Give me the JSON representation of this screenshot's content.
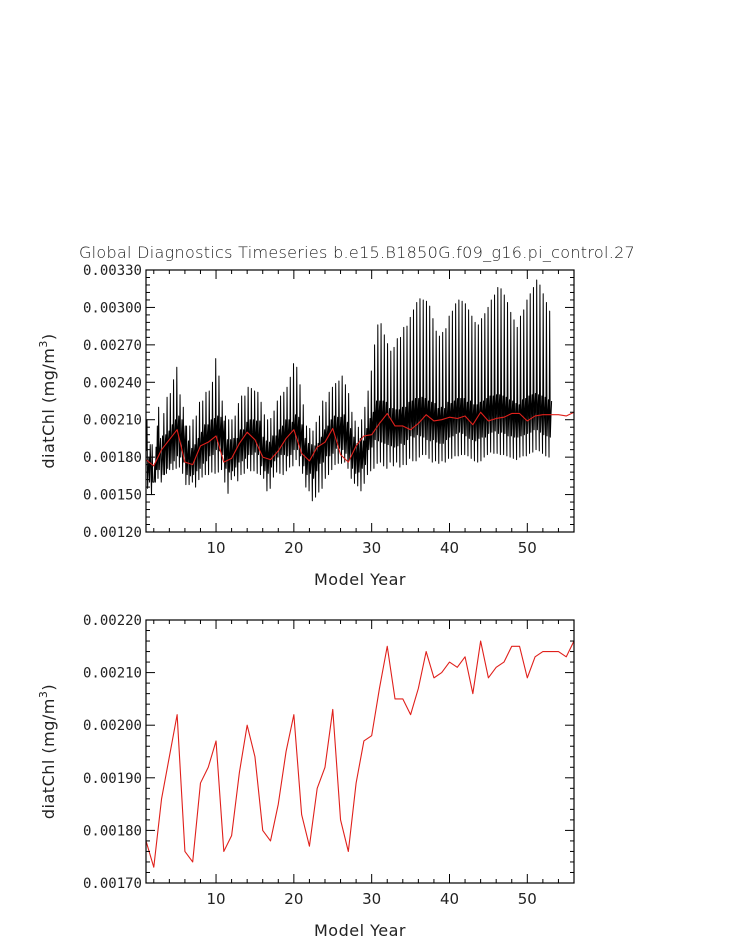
{
  "page_title": "Global Diagnostics Timeseries b.e15.B1850G.f09_g16.pi_control.27",
  "colors": {
    "monthly": "#000000",
    "annual": "#e0201b",
    "axes": "#000000"
  },
  "chart_data": [
    {
      "type": "line",
      "title": "Global Diagnostics Timeseries b.e15.B1850G.f09_g16.pi_control.27",
      "xlabel": "Model Year",
      "ylabel": "diatChl (mg/m³)",
      "ylabel_base": "diatChl (mg/m",
      "ylabel_sup": "3",
      "ylabel_close": ")",
      "xlim": [
        1,
        56
      ],
      "ylim": [
        0.0012,
        0.0033
      ],
      "xticks": [
        10,
        20,
        30,
        40,
        50
      ],
      "xtick_labels": [
        "10",
        "20",
        "30",
        "40",
        "50"
      ],
      "yticks": [
        0.0012,
        0.0015,
        0.0018,
        0.0021,
        0.0024,
        0.0027,
        0.003,
        0.0033
      ],
      "ytick_labels": [
        "0.00120",
        "0.00150",
        "0.00180",
        "0.00210",
        "0.00240",
        "0.00270",
        "0.00300",
        "0.00330"
      ],
      "series": [
        {
          "name": "monthly",
          "color": "#000000",
          "x_start": 1.0417,
          "x_step": 0.08333,
          "values": [
            0.00185,
            0.0021,
            0.00155,
            0.0017,
            0.0018,
            0.0016,
            0.0019,
            0.00172,
            0.0015,
            0.0019,
            0.0016,
            0.0016,
            0.0016,
            0.00175,
            0.0016,
            0.00188,
            0.0017,
            0.00205,
            0.00163,
            0.0022,
            0.0017,
            0.00185,
            0.00195,
            0.0016,
            0.00177,
            0.00197,
            0.00166,
            0.00215,
            0.00166,
            0.0019,
            0.00198,
            0.00167,
            0.00228,
            0.00171,
            0.00193,
            0.00201,
            0.0017,
            0.00231,
            0.00175,
            0.00195,
            0.00206,
            0.0017,
            0.00242,
            0.00177,
            0.00199,
            0.0021,
            0.00171,
            0.00252,
            0.00181,
            0.00202,
            0.00213,
            0.00172,
            0.0023,
            0.0018,
            0.00195,
            0.0021,
            0.00167,
            0.0022,
            0.00176,
            0.00192,
            0.00205,
            0.00158,
            0.00205,
            0.00166,
            0.00181,
            0.00193,
            0.00158,
            0.00205,
            0.00165,
            0.00178,
            0.00187,
            0.0016,
            0.0021,
            0.00166,
            0.00183,
            0.0019,
            0.00156,
            0.00213,
            0.00169,
            0.00185,
            0.00195,
            0.00162,
            0.00224,
            0.00171,
            0.00189,
            0.002,
            0.00164,
            0.00225,
            0.00175,
            0.00194,
            0.00206,
            0.00166,
            0.00232,
            0.00177,
            0.00196,
            0.00206,
            0.00166,
            0.00233,
            0.00181,
            0.00198,
            0.0021,
            0.00168,
            0.0024,
            0.00182,
            0.00198,
            0.00211,
            0.00167,
            0.00259,
            0.00186,
            0.00202,
            0.00213,
            0.00168,
            0.00245,
            0.00185,
            0.00199,
            0.00212,
            0.0017,
            0.00225,
            0.00182,
            0.00199,
            0.00209,
            0.0016,
            0.00213,
            0.00171,
            0.00185,
            0.00194,
            0.00151,
            0.0021,
            0.00168,
            0.00181,
            0.00194,
            0.00162,
            0.0021,
            0.00169,
            0.00184,
            0.00195,
            0.00165,
            0.00213,
            0.00172,
            0.00185,
            0.00195,
            0.00161,
            0.00223,
            0.00176,
            0.00192,
            0.00202,
            0.00166,
            0.00229,
            0.00177,
            0.00194,
            0.00202,
            0.00167,
            0.00229,
            0.00179,
            0.00197,
            0.00208,
            0.00171,
            0.00236,
            0.00182,
            0.00198,
            0.0021,
            0.00169,
            0.00235,
            0.00182,
            0.00197,
            0.0021,
            0.00169,
            0.00233,
            0.00184,
            0.00197,
            0.00209,
            0.00167,
            0.00232,
            0.00182,
            0.00195,
            0.00209,
            0.00166,
            0.00224,
            0.00173,
            0.00184,
            0.00196,
            0.00163,
            0.00214,
            0.00169,
            0.00181,
            0.00193,
            0.00153,
            0.0021,
            0.00167,
            0.00182,
            0.00192,
            0.00155,
            0.00211,
            0.00172,
            0.00186,
            0.00197,
            0.00164,
            0.00217,
            0.00177,
            0.00187,
            0.00197,
            0.00168,
            0.00225,
            0.0018,
            0.00192,
            0.00202,
            0.00167,
            0.00229,
            0.00182,
            0.00194,
            0.00205,
            0.00166,
            0.00232,
            0.00182,
            0.00197,
            0.0021,
            0.00169,
            0.00236,
            0.00181,
            0.00199,
            0.0021,
            0.00172,
            0.00244,
            0.00182,
            0.00197,
            0.00208,
            0.00173,
            0.00255,
            0.00186,
            0.00203,
            0.00214,
            0.00178,
            0.00252,
            0.00186,
            0.00201,
            0.00212,
            0.00173,
            0.00238,
            0.00181,
            0.00198,
            0.00206,
            0.00167,
            0.00222,
            0.00173,
            0.00187,
            0.00195,
            0.00156,
            0.00205,
            0.00166,
            0.00182,
            0.00191,
            0.00153,
            0.00203,
            0.00167,
            0.00178,
            0.0019,
            0.00145,
            0.00201,
            0.00163,
            0.00177,
            0.00189,
            0.00148,
            0.00208,
            0.00169,
            0.00182,
            0.00191,
            0.00152,
            0.00213,
            0.00175,
            0.00188,
            0.00196,
            0.00155,
            0.00225,
            0.00176,
            0.00193,
            0.00202,
            0.00163,
            0.00224,
            0.00181,
            0.00197,
            0.00205,
            0.00166,
            0.00232,
            0.00181,
            0.00199,
            0.0021,
            0.0017,
            0.00236,
            0.00183,
            0.00199,
            0.00213,
            0.00174,
            0.00239,
            0.00187,
            0.002,
            0.00212,
            0.00175,
            0.00241,
            0.00187,
            0.00202,
            0.00212,
            0.00175,
            0.00245,
            0.00186,
            0.00202,
            0.00214,
            0.00176,
            0.00238,
            0.00183,
            0.00197,
            0.00208,
            0.00171,
            0.00231,
            0.00178,
            0.00194,
            0.00203,
            0.00163,
            0.00216,
            0.00171,
            0.00184,
            0.00196,
            0.00159,
            0.00209,
            0.00167,
            0.00182,
            0.00191,
            0.00157,
            0.00204,
            0.00168,
            0.00181,
            0.00195,
            0.00153,
            0.0021,
            0.00171,
            0.00182,
            0.00193,
            0.00159,
            0.0022,
            0.00174,
            0.00191,
            0.00203,
            0.00166,
            0.00233,
            0.00186,
            0.00197,
            0.00211,
            0.00169,
            0.00249,
            0.00188,
            0.00206,
            0.00216,
            0.00171,
            0.0027,
            0.00194,
            0.00213,
            0.00225,
            0.00175,
            0.00286,
            0.00193,
            0.00214,
            0.00225,
            0.00176,
            0.00287,
            0.00192,
            0.00212,
            0.00225,
            0.00173,
            0.00278,
            0.00191,
            0.00211,
            0.00224,
            0.00171,
            0.00271,
            0.0019,
            0.00206,
            0.00219,
            0.00176,
            0.00265,
            0.00189,
            0.00205,
            0.00219,
            0.00173,
            0.00268,
            0.00188,
            0.00206,
            0.00218,
            0.00176,
            0.00275,
            0.00189,
            0.00206,
            0.00218,
            0.00172,
            0.00276,
            0.00191,
            0.00211,
            0.0022,
            0.00174,
            0.00284,
            0.0019,
            0.00207,
            0.0022,
            0.00174,
            0.00285,
            0.00194,
            0.00211,
            0.00224,
            0.00179,
            0.00292,
            0.00197,
            0.00212,
            0.00225,
            0.00177,
            0.00298,
            0.00196,
            0.00213,
            0.00227,
            0.00177,
            0.00304,
            0.00198,
            0.00214,
            0.00227,
            0.0018,
            0.00307,
            0.00197,
            0.00214,
            0.00228,
            0.00182,
            0.00306,
            0.00196,
            0.00215,
            0.00227,
            0.00182,
            0.00305,
            0.00194,
            0.00215,
            0.00225,
            0.00179,
            0.00301,
            0.00193,
            0.00212,
            0.00224,
            0.00176,
            0.00291,
            0.00194,
            0.00211,
            0.00223,
            0.00177,
            0.00281,
            0.00192,
            0.00209,
            0.00219,
            0.00175,
            0.00277,
            0.00191,
            0.0021,
            0.0022,
            0.00177,
            0.0028,
            0.00191,
            0.00209,
            0.00219,
            0.00176,
            0.00283,
            0.00194,
            0.0021,
            0.00224,
            0.00179,
            0.00293,
            0.00196,
            0.00213,
            0.00223,
            0.00179,
            0.00297,
            0.00197,
            0.00214,
            0.00225,
            0.00181,
            0.00303,
            0.00199,
            0.00216,
            0.00227,
            0.00181,
            0.00306,
            0.002,
            0.00215,
            0.00227,
            0.00182,
            0.00305,
            0.00199,
            0.00214,
            0.00227,
            0.00182,
            0.00303,
            0.00197,
            0.00213,
            0.00224,
            0.00181,
            0.00298,
            0.00195,
            0.00212,
            0.00225,
            0.00179,
            0.00293,
            0.00194,
            0.00211,
            0.00222,
            0.00177,
            0.00288,
            0.00193,
            0.00211,
            0.00222,
            0.00176,
            0.00286,
            0.00195,
            0.00212,
            0.00224,
            0.00177,
            0.00291,
            0.00196,
            0.00213,
            0.00225,
            0.0018,
            0.00295,
            0.00196,
            0.00214,
            0.00227,
            0.00182,
            0.003,
            0.00199,
            0.00217,
            0.00229,
            0.00184,
            0.00306,
            0.002,
            0.00217,
            0.00229,
            0.00183,
            0.0031,
            0.00201,
            0.00219,
            0.0023,
            0.00183,
            0.00316,
            0.00199,
            0.00219,
            0.0023,
            0.00182,
            0.00315,
            0.002,
            0.00218,
            0.00229,
            0.00182,
            0.0031,
            0.00199,
            0.00216,
            0.00228,
            0.00181,
            0.00304,
            0.00197,
            0.00215,
            0.00226,
            0.0018,
            0.00296,
            0.00197,
            0.00214,
            0.00225,
            0.00179,
            0.0029,
            0.00196,
            0.00212,
            0.00223,
            0.00178,
            0.00284,
            0.00196,
            0.00212,
            0.00222,
            0.0018,
            0.00293,
            0.00197,
            0.00214,
            0.00226,
            0.00181,
            0.00298,
            0.00198,
            0.00215,
            0.00227,
            0.00181,
            0.00306,
            0.00199,
            0.00217,
            0.00229,
            0.00183,
            0.00311,
            0.002,
            0.00219,
            0.0023,
            0.00184,
            0.00316,
            0.00202,
            0.0022,
            0.00231,
            0.00186,
            0.00322,
            0.00202,
            0.00218,
            0.0023,
            0.00185,
            0.00318,
            0.002,
            0.00216,
            0.00229,
            0.00183,
            0.00311,
            0.00198,
            0.00215,
            0.00228,
            0.00181,
            0.00304,
            0.00197,
            0.00214,
            0.00226,
            0.0018,
            0.00297,
            0.00196,
            0.00213,
            0.00225
          ]
        },
        {
          "name": "annual mean",
          "color": "#e0201b",
          "x": [
            1,
            2,
            3,
            4,
            5,
            6,
            7,
            8,
            9,
            10,
            11,
            12,
            13,
            14,
            15,
            16,
            17,
            18,
            19,
            20,
            21,
            22,
            23,
            24,
            25,
            26,
            27,
            28,
            29,
            30,
            31,
            32,
            33,
            34,
            35,
            36,
            37,
            38,
            39,
            40,
            41,
            42,
            43,
            44,
            45,
            46,
            47,
            48,
            49,
            50,
            51,
            52,
            53,
            54,
            55,
            56
          ],
          "values": [
            0.00178,
            0.00173,
            0.00186,
            0.00194,
            0.00202,
            0.00176,
            0.00174,
            0.00189,
            0.00192,
            0.00197,
            0.00176,
            0.00179,
            0.00191,
            0.002,
            0.00194,
            0.0018,
            0.00178,
            0.00185,
            0.00195,
            0.00202,
            0.00183,
            0.00177,
            0.00188,
            0.00192,
            0.00203,
            0.00182,
            0.00176,
            0.00189,
            0.00197,
            0.00198,
            0.00207,
            0.00215,
            0.00205,
            0.00205,
            0.00202,
            0.00207,
            0.00214,
            0.00209,
            0.0021,
            0.00212,
            0.00211,
            0.00213,
            0.00206,
            0.00216,
            0.00209,
            0.00211,
            0.00212,
            0.00215,
            0.00215,
            0.00209,
            0.00213,
            0.00214,
            0.00214,
            0.00214,
            0.00213,
            0.00216
          ]
        }
      ]
    },
    {
      "type": "line",
      "title": "",
      "xlabel": "Model Year",
      "ylabel": "diatChl (mg/m³)",
      "ylabel_base": "diatChl (mg/m",
      "ylabel_sup": "3",
      "ylabel_close": ")",
      "xlim": [
        1,
        56
      ],
      "ylim": [
        0.0017,
        0.0022
      ],
      "xticks": [
        10,
        20,
        30,
        40,
        50
      ],
      "xtick_labels": [
        "10",
        "20",
        "30",
        "40",
        "50"
      ],
      "yticks": [
        0.0017,
        0.0018,
        0.0019,
        0.002,
        0.0021,
        0.0022
      ],
      "ytick_labels": [
        "0.00170",
        "0.00180",
        "0.00190",
        "0.00200",
        "0.00210",
        "0.00220"
      ],
      "series": [
        {
          "name": "annual mean",
          "color": "#e0201b",
          "x": [
            1,
            2,
            3,
            4,
            5,
            6,
            7,
            8,
            9,
            10,
            11,
            12,
            13,
            14,
            15,
            16,
            17,
            18,
            19,
            20,
            21,
            22,
            23,
            24,
            25,
            26,
            27,
            28,
            29,
            30,
            31,
            32,
            33,
            34,
            35,
            36,
            37,
            38,
            39,
            40,
            41,
            42,
            43,
            44,
            45,
            46,
            47,
            48,
            49,
            50,
            51,
            52,
            53,
            54,
            55,
            56
          ],
          "values": [
            0.00178,
            0.00173,
            0.00186,
            0.00194,
            0.00202,
            0.00176,
            0.00174,
            0.00189,
            0.00192,
            0.00197,
            0.00176,
            0.00179,
            0.00191,
            0.002,
            0.00194,
            0.0018,
            0.00178,
            0.00185,
            0.00195,
            0.00202,
            0.00183,
            0.00177,
            0.00188,
            0.00192,
            0.00203,
            0.00182,
            0.00176,
            0.00189,
            0.00197,
            0.00198,
            0.00207,
            0.00215,
            0.00205,
            0.00205,
            0.00202,
            0.00207,
            0.00214,
            0.00209,
            0.0021,
            0.00212,
            0.00211,
            0.00213,
            0.00206,
            0.00216,
            0.00209,
            0.00211,
            0.00212,
            0.00215,
            0.00215,
            0.00209,
            0.00213,
            0.00214,
            0.00214,
            0.00214,
            0.00213,
            0.00216
          ]
        }
      ]
    }
  ]
}
